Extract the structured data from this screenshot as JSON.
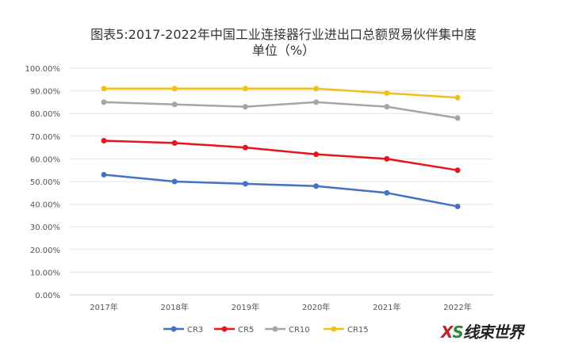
{
  "chart_data": {
    "type": "line",
    "title": "图表5:2017-2022年中国工业连接器行业进出口总额贸易伙伴集中度",
    "subtitle": "单位（%）",
    "categories": [
      "2017年",
      "2018年",
      "2019年",
      "2020年",
      "2021年",
      "2022年"
    ],
    "ylim": [
      0,
      100
    ],
    "yticks": [
      "0.00%",
      "10.00%",
      "20.00%",
      "30.00%",
      "40.00%",
      "50.00%",
      "60.00%",
      "70.00%",
      "80.00%",
      "90.00%",
      "100.00%"
    ],
    "grid": true,
    "legend_position": "bottom",
    "series": [
      {
        "name": "CR3",
        "color": "#4472c4",
        "values": [
          53,
          50,
          49,
          48,
          45,
          39
        ]
      },
      {
        "name": "CR5",
        "color": "#e8141c",
        "values": [
          68,
          67,
          65,
          62,
          60,
          55
        ]
      },
      {
        "name": "CR10",
        "color": "#a5a5a5",
        "values": [
          85,
          84,
          83,
          85,
          83,
          78
        ]
      },
      {
        "name": "CR15",
        "color": "#f2bf1a",
        "values": [
          91,
          91,
          91,
          91,
          89,
          87
        ]
      }
    ]
  },
  "watermark": "XS线束世界"
}
